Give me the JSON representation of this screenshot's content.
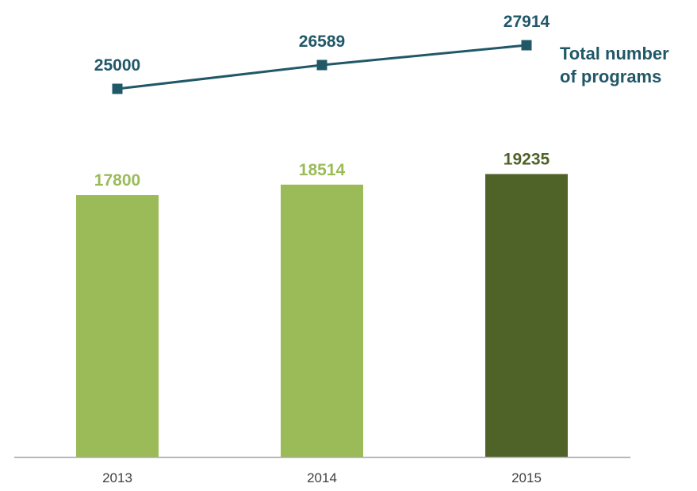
{
  "chart_data": {
    "type": "bar+line",
    "categories": [
      "2013",
      "2014",
      "2015"
    ],
    "series": [
      {
        "type": "bar",
        "values": [
          17800,
          18514,
          19235
        ],
        "colors": [
          "#9bbb59",
          "#9bbb59",
          "#4f6228"
        ],
        "label_colors": [
          "#9bbb59",
          "#9bbb59",
          "#4f6228"
        ]
      },
      {
        "type": "line",
        "name": "Total number of programs",
        "name_lines": [
          "Total number",
          "of programs"
        ],
        "values": [
          25000,
          26589,
          27914
        ],
        "color": "#215868",
        "marker": "square"
      }
    ],
    "grid": false,
    "legend": "right-of-line-end"
  }
}
